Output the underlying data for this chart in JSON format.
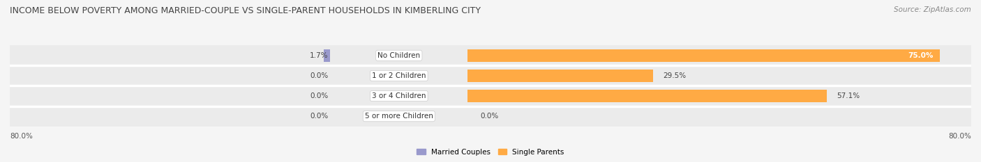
{
  "title": "INCOME BELOW POVERTY AMONG MARRIED-COUPLE VS SINGLE-PARENT HOUSEHOLDS IN KIMBERLING CITY",
  "source": "Source: ZipAtlas.com",
  "categories": [
    "No Children",
    "1 or 2 Children",
    "3 or 4 Children",
    "5 or more Children"
  ],
  "married_values": [
    1.7,
    0.0,
    0.0,
    0.0
  ],
  "single_values": [
    75.0,
    29.5,
    57.1,
    0.0
  ],
  "married_color": "#9999cc",
  "single_color": "#ffaa44",
  "single_color_light": "#ffccaa",
  "bg_row": "#ebebeb",
  "bg_fig": "#f5f5f5",
  "axis_max": 80.0,
  "axis_label_left": "80.0%",
  "axis_label_right": "80.0%",
  "legend_married": "Married Couples",
  "legend_single": "Single Parents",
  "title_fontsize": 9,
  "source_fontsize": 7.5,
  "label_fontsize": 7.5,
  "category_fontsize": 7.5
}
